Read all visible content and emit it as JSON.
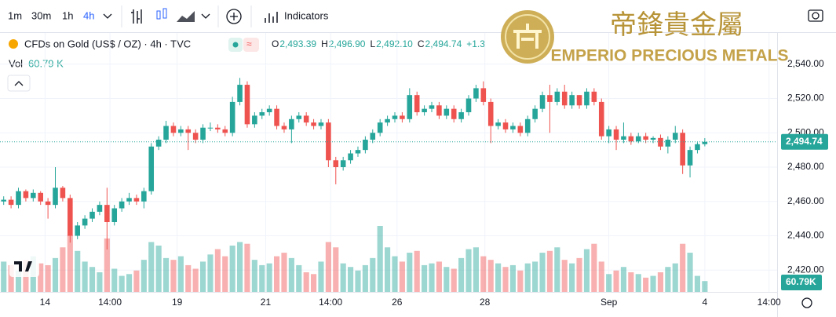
{
  "toolbar": {
    "intervals": [
      "1m",
      "30m",
      "1h",
      "4h"
    ],
    "indicators": "Indicators"
  },
  "logo": {
    "chinese": "帝鋒貴金屬",
    "english": "EMPERIO PRECIOUS METALS"
  },
  "chart_data": {
    "type": "candlestick",
    "title": "CFDs on Gold (US$ / OZ) · 4h · TVC",
    "ohlc_legend": [
      {
        "label": "O",
        "value": "2,493.39"
      },
      {
        "label": "H",
        "value": "2,496.90"
      },
      {
        "label": "L",
        "value": "2,492.10"
      },
      {
        "label": "C",
        "value": "2,494.74"
      }
    ],
    "change": "+1.3",
    "up_color": "#26a69a",
    "down_color": "#ef5350",
    "open": [
      2460,
      2461,
      2458,
      2466,
      2462,
      2465,
      2460,
      2458,
      2468,
      2462,
      2440,
      2446,
      2450,
      2454,
      2458,
      2448,
      2456,
      2460,
      2462,
      2460,
      2466,
      2492,
      2496,
      2504,
      2500,
      2502,
      2500,
      2496,
      2503,
      2503,
      2502,
      2500,
      2518,
      2528,
      2505,
      2510,
      2512,
      2514,
      2504,
      2502,
      2508,
      2510,
      2506,
      2504,
      2506,
      2484,
      2480,
      2484,
      2488,
      2490,
      2496,
      2500,
      2506,
      2508,
      2510,
      2508,
      2522,
      2512,
      2514,
      2516,
      2510,
      2514,
      2508,
      2512,
      2520,
      2526,
      2518,
      2504,
      2506,
      2502,
      2504,
      2500,
      2508,
      2514,
      2522,
      2518,
      2524,
      2516,
      2522,
      2516,
      2524,
      2518,
      2498,
      2502,
      2496,
      2498,
      2495,
      2498,
      2496,
      2497,
      2492,
      2496,
      2500,
      2481,
      2490,
      2493.39
    ],
    "high": [
      2463,
      2463,
      2468,
      2467,
      2467,
      2466,
      2462,
      2480,
      2469,
      2464,
      2448,
      2452,
      2456,
      2460,
      2468,
      2458,
      2462,
      2465,
      2464,
      2468,
      2494,
      2498,
      2507,
      2506,
      2504,
      2504,
      2502,
      2505,
      2506,
      2505,
      2504,
      2521,
      2532,
      2530,
      2512,
      2514,
      2516,
      2516,
      2506,
      2510,
      2512,
      2512,
      2508,
      2508,
      2508,
      2486,
      2486,
      2490,
      2492,
      2498,
      2502,
      2508,
      2510,
      2512,
      2512,
      2526,
      2524,
      2516,
      2518,
      2518,
      2516,
      2516,
      2514,
      2522,
      2528,
      2530,
      2520,
      2508,
      2508,
      2506,
      2506,
      2510,
      2516,
      2524,
      2528,
      2526,
      2528,
      2524,
      2522,
      2526,
      2526,
      2520,
      2504,
      2504,
      2506,
      2500,
      2500,
      2500,
      2498,
      2499,
      2498,
      2504,
      2502,
      2492,
      2494.5,
      2496.9
    ],
    "low": [
      2458,
      2456,
      2456,
      2460,
      2460,
      2458,
      2450,
      2456,
      2460,
      2436,
      2438,
      2444,
      2448,
      2452,
      2432,
      2446,
      2454,
      2458,
      2458,
      2456,
      2464,
      2490,
      2494,
      2498,
      2498,
      2490,
      2494,
      2494,
      2501,
      2500,
      2498,
      2498,
      2516,
      2503,
      2503,
      2508,
      2510,
      2502,
      2500,
      2494,
      2506,
      2504,
      2502,
      2502,
      2480,
      2470,
      2478,
      2482,
      2486,
      2488,
      2494,
      2498,
      2504,
      2506,
      2506,
      2506,
      2510,
      2510,
      2512,
      2508,
      2508,
      2506,
      2506,
      2510,
      2518,
      2516,
      2494,
      2502,
      2500,
      2500,
      2498,
      2498,
      2506,
      2512,
      2500,
      2516,
      2514,
      2514,
      2514,
      2514,
      2516,
      2496,
      2494,
      2490,
      2494,
      2493,
      2494,
      2494,
      2494,
      2490,
      2488,
      2494,
      2476,
      2474,
      2488,
      2492.1
    ],
    "close": [
      2461,
      2458,
      2466,
      2462,
      2465,
      2460,
      2458,
      2468,
      2462,
      2440,
      2446,
      2450,
      2454,
      2458,
      2448,
      2456,
      2460,
      2462,
      2460,
      2466,
      2492,
      2496,
      2504,
      2500,
      2502,
      2500,
      2496,
      2503,
      2503,
      2502,
      2500,
      2518,
      2528,
      2505,
      2510,
      2512,
      2514,
      2504,
      2502,
      2508,
      2510,
      2506,
      2504,
      2506,
      2484,
      2480,
      2484,
      2488,
      2490,
      2496,
      2500,
      2506,
      2508,
      2510,
      2508,
      2522,
      2512,
      2514,
      2516,
      2510,
      2514,
      2508,
      2512,
      2520,
      2526,
      2518,
      2504,
      2506,
      2502,
      2504,
      2500,
      2508,
      2514,
      2522,
      2518,
      2524,
      2516,
      2522,
      2516,
      2524,
      2518,
      2498,
      2502,
      2496,
      2498,
      2495,
      2498,
      2496,
      2497,
      2492,
      2496,
      2500,
      2481,
      2490,
      2493.39,
      2494.74
    ],
    "volume": {
      "name": "Vol",
      "values": [
        170,
        150,
        120,
        180,
        200,
        160,
        150,
        190,
        250,
        320,
        230,
        170,
        140,
        110,
        300,
        130,
        90,
        100,
        120,
        180,
        280,
        260,
        190,
        180,
        200,
        150,
        130,
        170,
        210,
        240,
        200,
        260,
        280,
        270,
        180,
        150,
        160,
        200,
        220,
        190,
        150,
        110,
        100,
        170,
        280,
        250,
        160,
        140,
        120,
        150,
        190,
        370,
        250,
        200,
        170,
        220,
        230,
        150,
        160,
        170,
        140,
        130,
        190,
        240,
        250,
        200,
        180,
        160,
        140,
        150,
        120,
        160,
        170,
        220,
        230,
        250,
        180,
        160,
        190,
        240,
        270,
        170,
        100,
        120,
        140,
        110,
        100,
        80,
        90,
        110,
        140,
        160,
        270,
        220,
        90,
        60.79
      ],
      "last_label": "60.79 K",
      "tag_label": "60.79K"
    },
    "last_price": {
      "value": 2494.74,
      "label": "2,494.74"
    },
    "ylim": [
      2407.3,
      2558.2
    ],
    "yticks": [
      {
        "value": 2420,
        "label": "2,420.00"
      },
      {
        "value": 2440,
        "label": "2,440.00"
      },
      {
        "value": 2460,
        "label": "2,460.00"
      },
      {
        "value": 2480,
        "label": "2,480.00"
      },
      {
        "value": 2500,
        "label": "2,500.00"
      },
      {
        "value": 2520,
        "label": "2,520.00"
      },
      {
        "value": 2540,
        "label": "2,540.00"
      }
    ],
    "xlim": [
      -0.5,
      104.8
    ],
    "xticks": [
      {
        "value": 5.6,
        "label": "14"
      },
      {
        "value": 14.4,
        "label": "14:00"
      },
      {
        "value": 23.5,
        "label": "19"
      },
      {
        "value": 35.5,
        "label": "21"
      },
      {
        "value": 44.3,
        "label": "14:00"
      },
      {
        "value": 53.3,
        "label": "26"
      },
      {
        "value": 65.2,
        "label": "28"
      },
      {
        "value": 82,
        "label": "Sep"
      },
      {
        "value": 95,
        "label": "4"
      },
      {
        "value": 103.7,
        "label": "14:00"
      }
    ]
  }
}
